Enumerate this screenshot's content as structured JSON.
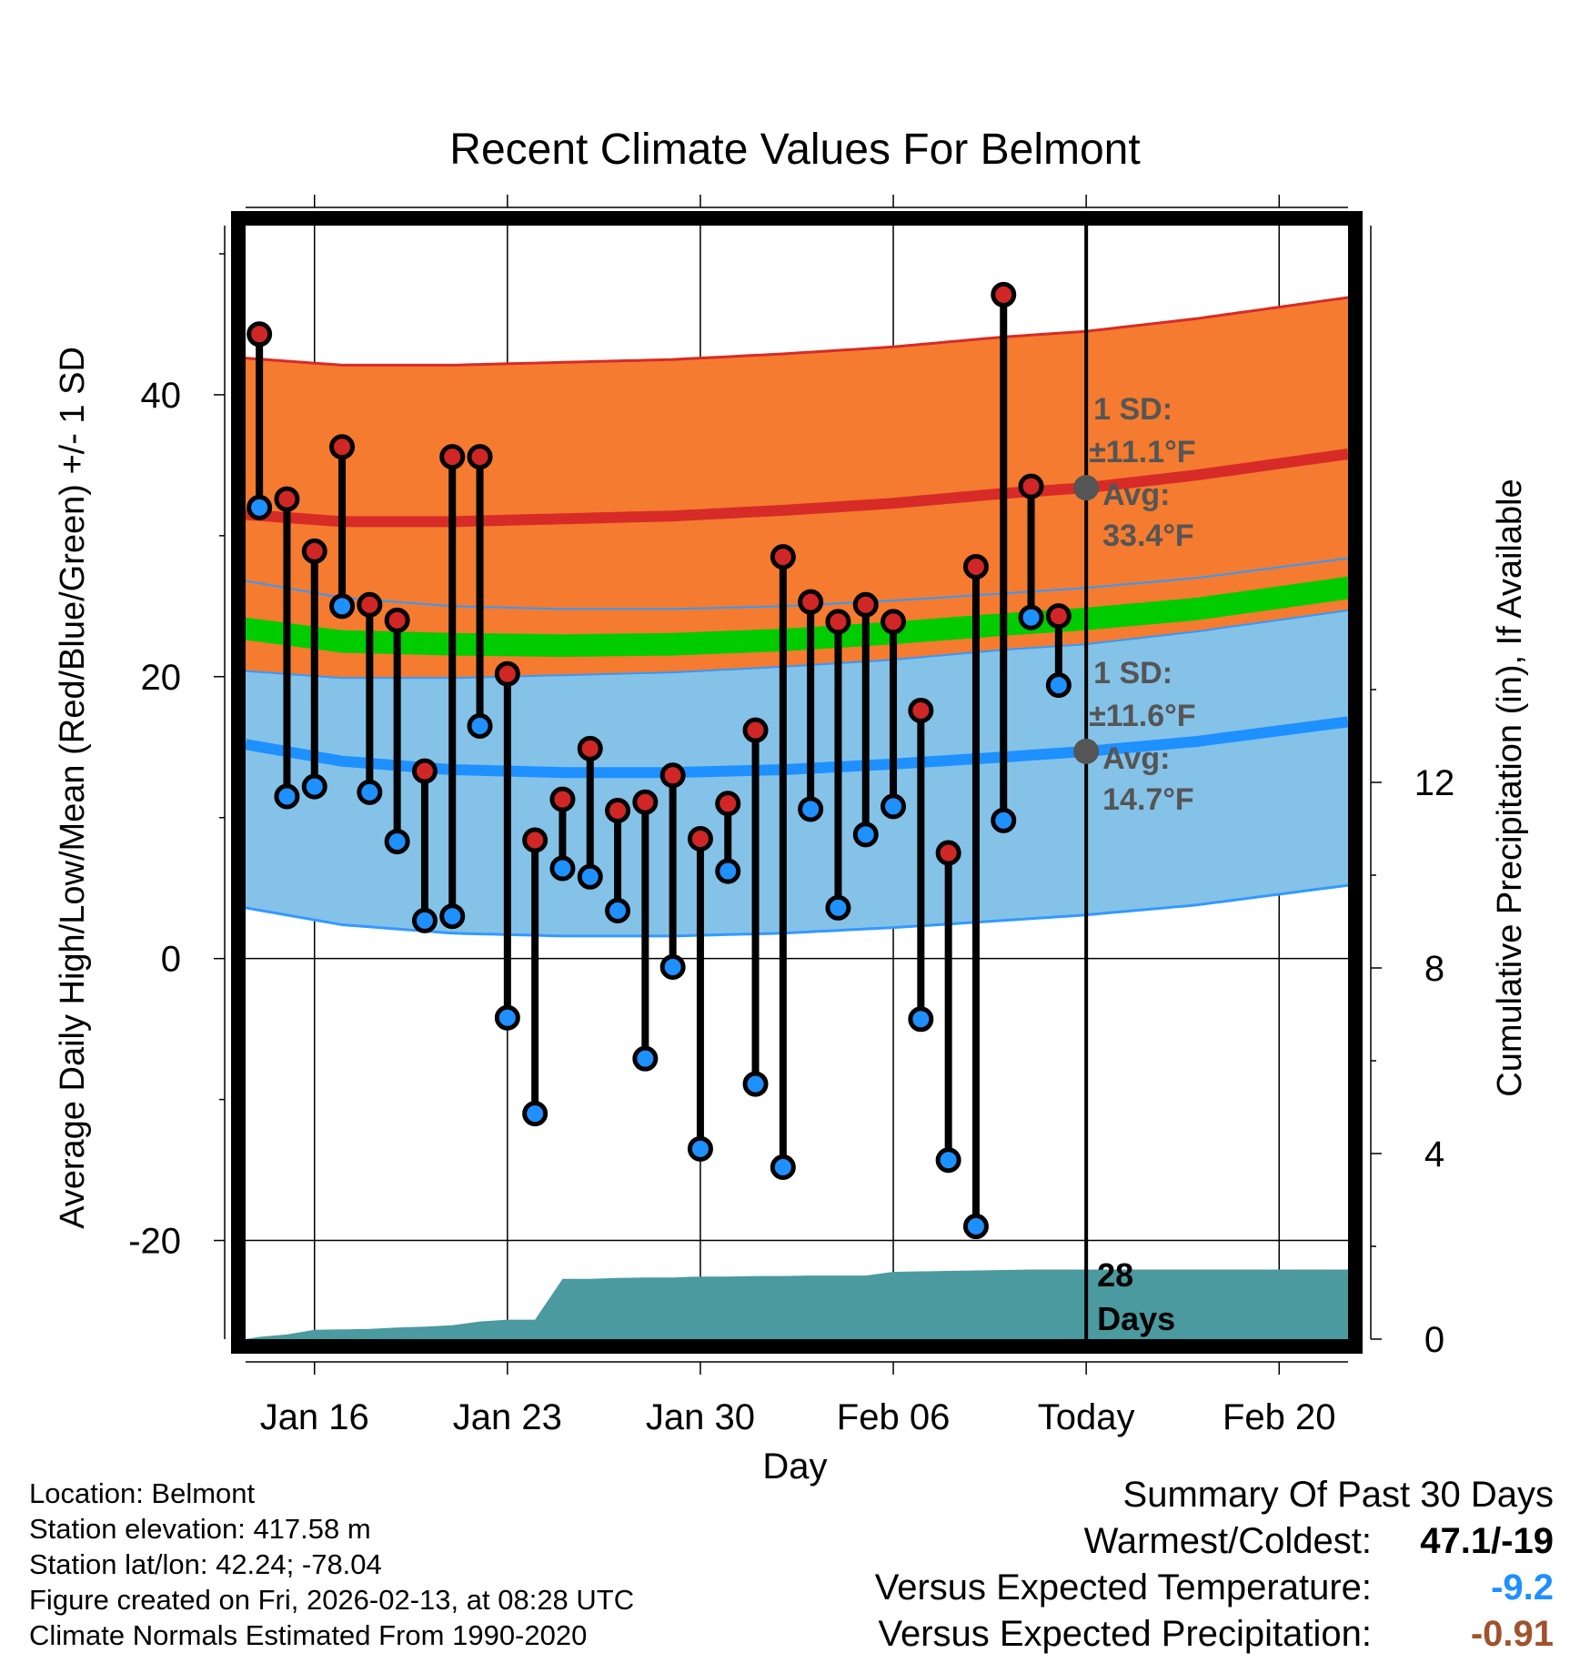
{
  "chart_data": {
    "type": "line",
    "title": "Recent Climate Values For Belmont",
    "xlabel": "Day",
    "ylabel": "Average Daily High/Low/Mean (Red/Blue/Green) +/- 1 SD",
    "y2label": "Cumulative Precipitation (in), If Available",
    "ylim": [
      -27,
      52
    ],
    "y2lim": [
      0,
      24
    ],
    "xlim": [
      -0.5,
      39.5
    ],
    "yticks": [
      {
        "v": -20,
        "label": "-20"
      },
      {
        "v": 0,
        "label": "0"
      },
      {
        "v": 20,
        "label": "20"
      },
      {
        "v": 40,
        "label": "40"
      }
    ],
    "yminor": [
      -10,
      10,
      30,
      50
    ],
    "y2ticks": [
      {
        "v": 0,
        "label": "0"
      },
      {
        "v": 4,
        "label": "4"
      },
      {
        "v": 8,
        "label": "8"
      },
      {
        "v": 12,
        "label": "12"
      }
    ],
    "xticks": [
      {
        "day": 2,
        "label": "Jan 16"
      },
      {
        "day": 9,
        "label": "Jan 23"
      },
      {
        "day": 16,
        "label": "Jan 30"
      },
      {
        "day": 23,
        "label": "Feb 06"
      },
      {
        "day": 30,
        "label": "Today"
      },
      {
        "day": 37,
        "label": "Feb 20"
      }
    ],
    "today_day": 30,
    "normals": {
      "days": [
        -0.5,
        3,
        7,
        11,
        15,
        19,
        23,
        27,
        30,
        34,
        39.5
      ],
      "high_avg": [
        31.5,
        31.0,
        31.0,
        31.2,
        31.4,
        31.8,
        32.3,
        33.0,
        33.4,
        34.3,
        35.8
      ],
      "high_sd": 11.1,
      "low_avg": [
        15.2,
        14.0,
        13.4,
        13.2,
        13.2,
        13.4,
        13.8,
        14.3,
        14.7,
        15.4,
        16.8
      ],
      "low_sd": 11.6,
      "mean_avg": [
        23.4,
        22.5,
        22.3,
        22.2,
        22.3,
        22.6,
        23.1,
        23.7,
        24.1,
        24.8,
        26.3
      ],
      "mean_band": 0.8
    },
    "series": [
      {
        "name": "Daily High",
        "color": "#d12626",
        "values": [
          44.3,
          32.6,
          28.9,
          36.3,
          25.1,
          24.0,
          13.3,
          35.6,
          35.6,
          20.2,
          8.4,
          11.3,
          14.9,
          10.5,
          11.1,
          13.0,
          8.5,
          11.0,
          16.2,
          28.5,
          25.3,
          23.9,
          25.1,
          23.9,
          17.6,
          7.5,
          27.8,
          47.1,
          33.5,
          24.3
        ]
      },
      {
        "name": "Daily Low",
        "color": "#1e90ff",
        "values": [
          32.0,
          11.5,
          12.2,
          25.0,
          11.8,
          8.3,
          2.7,
          3.0,
          16.5,
          -4.2,
          -11.0,
          6.4,
          5.8,
          3.4,
          -7.1,
          -0.6,
          -13.5,
          6.2,
          -8.9,
          -14.8,
          10.6,
          3.6,
          8.8,
          10.8,
          -4.3,
          -14.3,
          -19.0,
          9.8,
          24.2,
          19.4
        ]
      }
    ],
    "precip_cumulative": {
      "days": [
        -0.5,
        0,
        1,
        2,
        3,
        4,
        5,
        6,
        7,
        8,
        9,
        10,
        11,
        12,
        13,
        14,
        15,
        16,
        17,
        18,
        19,
        20,
        21,
        22,
        23,
        24,
        25,
        26,
        27,
        28,
        29,
        30,
        31,
        32,
        33,
        34,
        35,
        36,
        37,
        38,
        39.5
      ],
      "values": [
        0.0,
        0.05,
        0.1,
        0.2,
        0.21,
        0.22,
        0.25,
        0.27,
        0.3,
        0.38,
        0.42,
        0.42,
        1.3,
        1.3,
        1.32,
        1.33,
        1.33,
        1.35,
        1.35,
        1.36,
        1.36,
        1.37,
        1.37,
        1.37,
        1.45,
        1.46,
        1.47,
        1.48,
        1.49,
        1.5,
        1.5,
        1.5,
        1.5,
        1.5,
        1.5,
        1.5,
        1.5,
        1.5,
        1.5,
        1.5,
        1.5
      ]
    },
    "annotations": {
      "high_sd_label": "1 SD:",
      "high_sd_value": "±11.1°F",
      "high_avg_label": "Avg:",
      "high_avg_value": "33.4°F",
      "low_sd_label": "1 SD:",
      "low_sd_value": "±11.6°F",
      "low_avg_label": "Avg:",
      "low_avg_value": "14.7°F",
      "days_count": "28",
      "days_word": "Days"
    },
    "colors": {
      "high_band": "#f47b2f",
      "high_line": "#d72b27",
      "mean_band": "#8e0f17",
      "mean_line": "#00cc00",
      "low_band": "#85c2e8",
      "low_line": "#1e90ff",
      "low_edge": "#3399ff",
      "precip": "#4a9aa0",
      "annotation": "#555555"
    }
  },
  "station_info": {
    "location": "Location: Belmont",
    "elevation": "Station elevation: 417.58 m",
    "latlon": "Station lat/lon: 42.24; -78.04",
    "created": "Figure created on Fri, 2026-02-13, at 08:28 UTC",
    "normals_period": "Climate Normals Estimated From 1990-2020"
  },
  "summary": {
    "title": "Summary Of Past 30 Days",
    "warmest_coldest_label": "Warmest/Coldest:",
    "warmest_coldest_value": "47.1/-19",
    "temp_label": "Versus Expected Temperature:",
    "temp_value": "-9.2",
    "temp_color": "#1e90ff",
    "precip_label": "Versus Expected Precipitation:",
    "precip_value": "-0.91",
    "precip_color": "#a0522d"
  }
}
